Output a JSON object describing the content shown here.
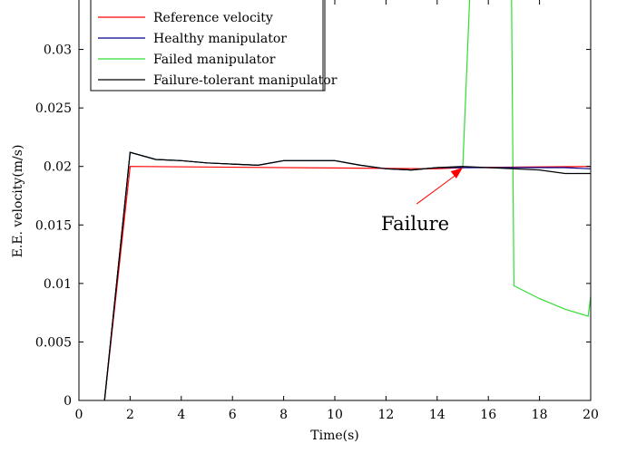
{
  "chart_data": {
    "type": "line",
    "title": "",
    "xlabel": "Time(s)",
    "ylabel": "E.E. velocity(m/s)",
    "xlim": [
      0,
      20
    ],
    "ylim": [
      0,
      0.035
    ],
    "xticks": [
      0,
      2,
      4,
      6,
      8,
      10,
      12,
      14,
      16,
      18,
      20
    ],
    "yticks": [
      0,
      0.005,
      0.01,
      0.015,
      0.02,
      0.025,
      0.03
    ],
    "x_tick_labels": [
      "0",
      "2",
      "4",
      "6",
      "8",
      "10",
      "12",
      "14",
      "16",
      "18",
      "20"
    ],
    "y_tick_labels": [
      "0",
      "0.005",
      "0.01",
      "0.015",
      "0.02",
      "0.025",
      "0.03"
    ],
    "grid": false,
    "legend_position": "top-left",
    "series": [
      {
        "name": "Reference velocity",
        "color": "#ff0000",
        "x": [
          1,
          2,
          14,
          15,
          20
        ],
        "y": [
          0,
          0.02,
          0.0198,
          0.0199,
          0.02
        ]
      },
      {
        "name": "Healthy manipulator",
        "color": "#00008b",
        "x": [
          1,
          2,
          3,
          4,
          5,
          6,
          7,
          8,
          9,
          10,
          11,
          12,
          13,
          14,
          15,
          16,
          17,
          18,
          19,
          20
        ],
        "y": [
          0,
          0.0212,
          0.0206,
          0.0205,
          0.0203,
          0.0202,
          0.0201,
          0.0205,
          0.0205,
          0.0205,
          0.0201,
          0.0198,
          0.0197,
          0.0199,
          0.0199,
          0.0199,
          0.0199,
          0.0199,
          0.0199,
          0.0198
        ]
      },
      {
        "name": "Failed manipulator",
        "color": "#33dd33",
        "x": [
          1,
          2,
          3,
          4,
          5,
          6,
          7,
          8,
          9,
          10,
          11,
          12,
          13,
          14,
          15,
          15.3,
          16.9,
          17,
          18,
          19,
          19.9,
          20
        ],
        "y": [
          0,
          0.0212,
          0.0206,
          0.0205,
          0.0203,
          0.0202,
          0.0201,
          0.0205,
          0.0205,
          0.0205,
          0.0201,
          0.0198,
          0.0197,
          0.0199,
          0.0199,
          0.036,
          0.036,
          0.0098,
          0.0087,
          0.0078,
          0.0072,
          0.0089
        ]
      },
      {
        "name": "Failure-tolerant manipulator",
        "color": "#000000",
        "x": [
          1,
          2,
          3,
          4,
          5,
          6,
          7,
          8,
          9,
          10,
          11,
          12,
          13,
          14,
          15,
          16,
          17,
          18,
          19,
          20
        ],
        "y": [
          0,
          0.0212,
          0.0206,
          0.0205,
          0.0203,
          0.0202,
          0.0201,
          0.0205,
          0.0205,
          0.0205,
          0.0201,
          0.0198,
          0.0197,
          0.0199,
          0.02,
          0.0199,
          0.0198,
          0.0197,
          0.0194,
          0.0194
        ]
      }
    ],
    "annotations": [
      {
        "text": "Failure",
        "arrow_to": [
          15,
          0.0199
        ],
        "arrow_from": [
          13.2,
          0.0168
        ],
        "text_at": [
          13.5,
          0.0155
        ],
        "color": "#ff0000"
      }
    ]
  }
}
